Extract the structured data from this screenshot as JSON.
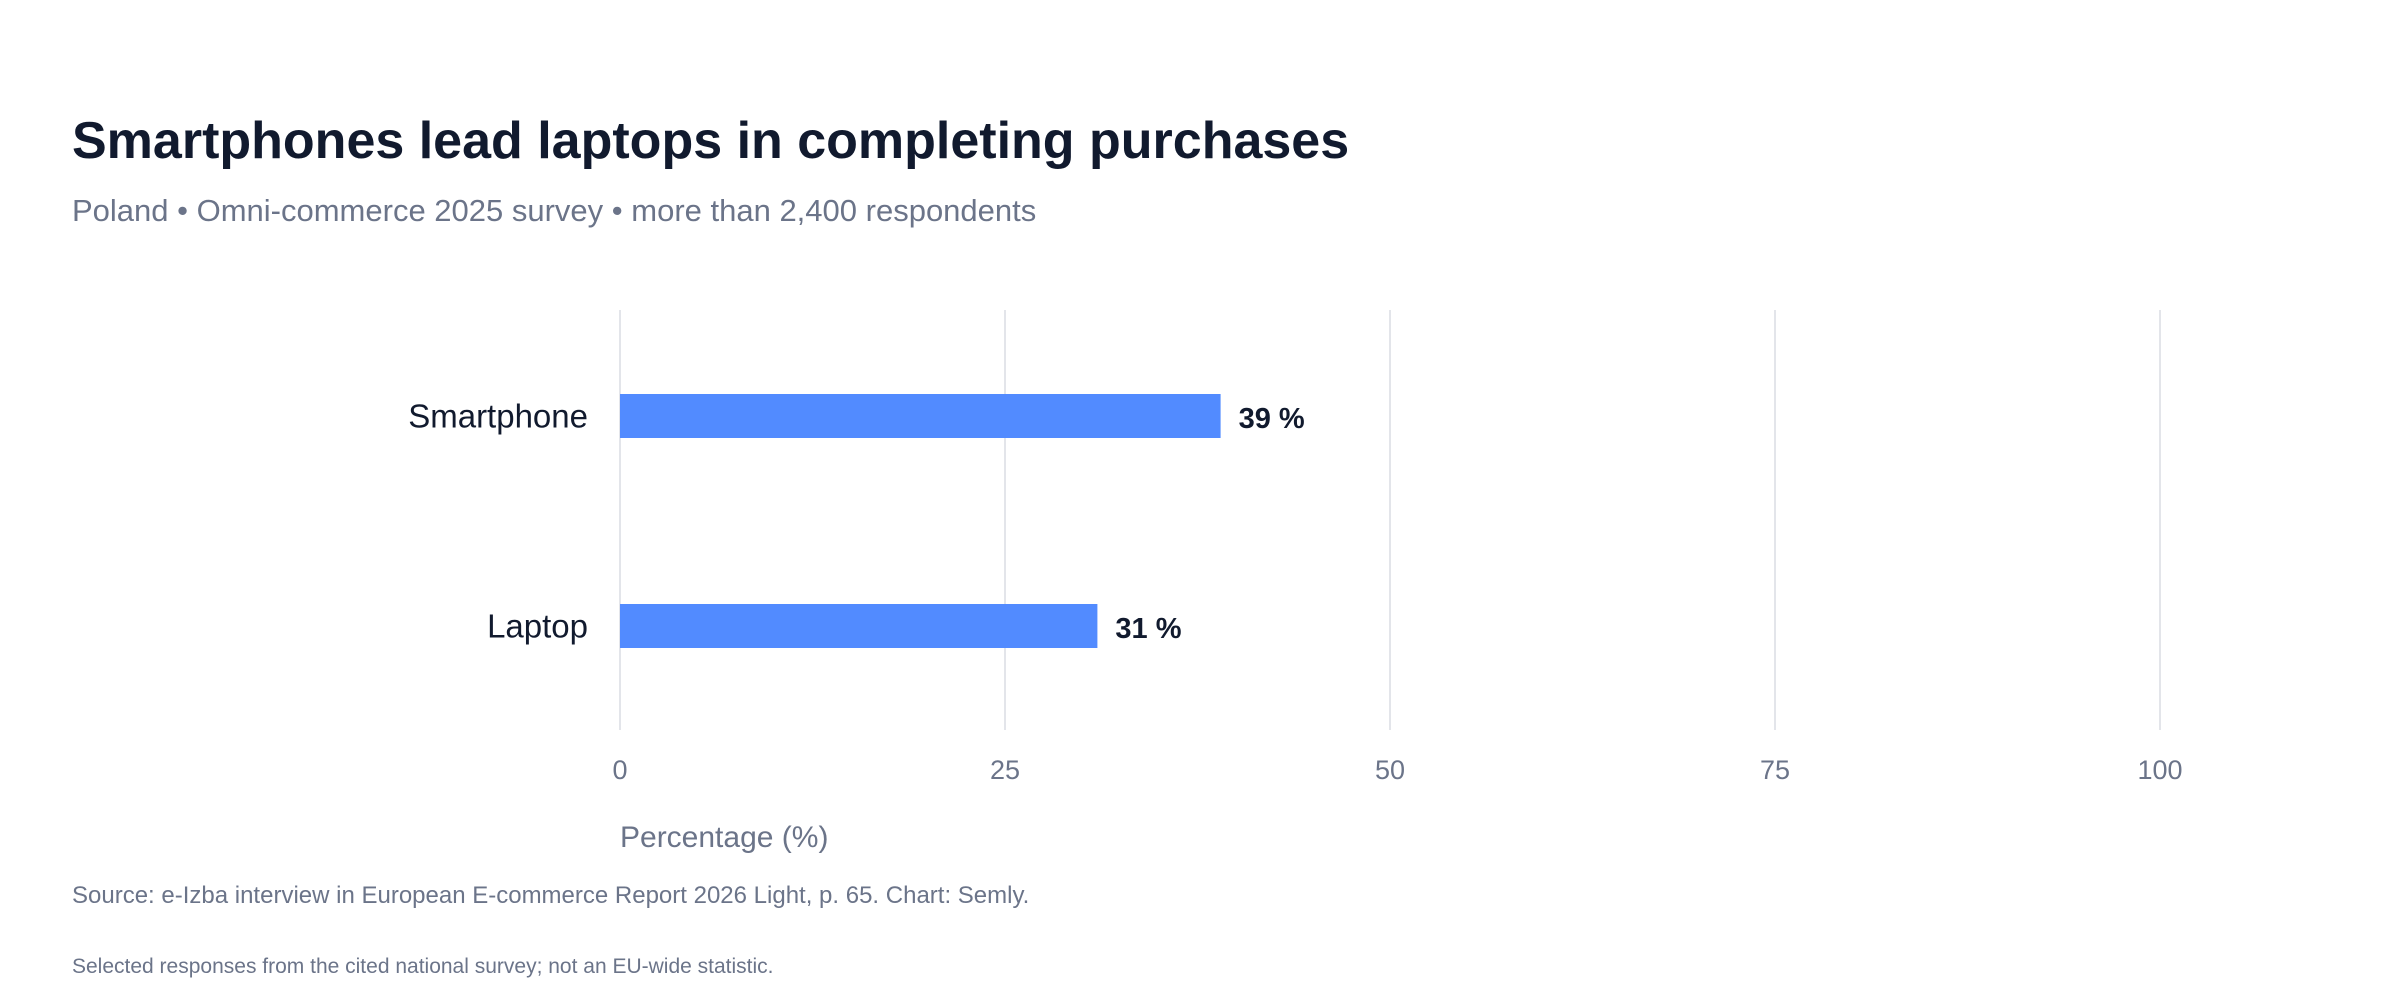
{
  "header": {
    "title": "Smartphones lead laptops in completing purchases",
    "subtitle": "Poland • Omni-commerce 2025 survey • more than 2,400 respondents"
  },
  "footer": {
    "source": "Source: e-Izba interview in European E-commerce Report 2026 Light, p. 65. Chart: Semly.",
    "note": "Selected responses from the cited national survey; not an EU-wide statistic."
  },
  "chart_data": {
    "type": "bar",
    "orientation": "horizontal",
    "categories": [
      "Smartphone",
      "Laptop"
    ],
    "values": [
      39,
      31
    ],
    "value_labels": [
      "39 %",
      "31 %"
    ],
    "xlabel": "Percentage (%)",
    "ylabel": "",
    "xlim": [
      0,
      100
    ],
    "x_ticks": [
      "0",
      "25",
      "50",
      "75",
      "100"
    ],
    "grid": "vertical",
    "legend": "none",
    "colors": {
      "bar": "#528bff",
      "grid": "#e3e5ea",
      "tick_text": "#6b7489",
      "category_text": "#111a2e",
      "value_text": "#111a2e"
    }
  }
}
